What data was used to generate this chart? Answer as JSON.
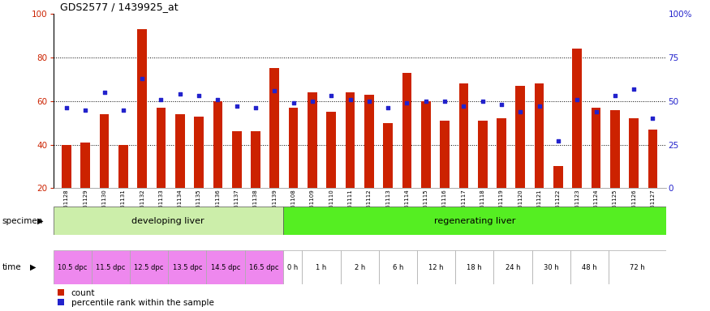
{
  "title": "GDS2577 / 1439925_at",
  "samples": [
    "GSM161128",
    "GSM161129",
    "GSM161130",
    "GSM161131",
    "GSM161132",
    "GSM161133",
    "GSM161134",
    "GSM161135",
    "GSM161136",
    "GSM161137",
    "GSM161138",
    "GSM161139",
    "GSM161108",
    "GSM161109",
    "GSM161110",
    "GSM161111",
    "GSM161112",
    "GSM161113",
    "GSM161114",
    "GSM161115",
    "GSM161116",
    "GSM161117",
    "GSM161118",
    "GSM161119",
    "GSM161120",
    "GSM161121",
    "GSM161122",
    "GSM161123",
    "GSM161124",
    "GSM161125",
    "GSM161126",
    "GSM161127"
  ],
  "counts": [
    40,
    41,
    54,
    40,
    93,
    57,
    54,
    53,
    60,
    46,
    46,
    75,
    57,
    64,
    55,
    64,
    63,
    50,
    73,
    60,
    51,
    68,
    51,
    52,
    67,
    68,
    30,
    84,
    57,
    56,
    52,
    47
  ],
  "percentile": [
    46,
    45,
    55,
    45,
    63,
    51,
    54,
    53,
    51,
    47,
    46,
    56,
    49,
    50,
    53,
    51,
    50,
    46,
    49,
    50,
    50,
    47,
    50,
    48,
    44,
    47,
    27,
    51,
    44,
    53,
    57,
    40
  ],
  "bar_color": "#cc2200",
  "marker_color": "#2222cc",
  "ylim_left": [
    20,
    100
  ],
  "ylim_right": [
    0,
    100
  ],
  "yticks_left": [
    20,
    40,
    60,
    80,
    100
  ],
  "yticks_right": [
    0,
    25,
    50,
    75,
    100
  ],
  "ytick_labels_right": [
    "0",
    "25",
    "50",
    "75",
    "100%"
  ],
  "developing_color": "#cceeaa",
  "regenerating_color": "#55ee22",
  "time_color_dpc": "#ee88ee",
  "time_color_h": "#ffffff",
  "time_border_color": "#aaaaaa",
  "time_groups": [
    [
      0,
      2,
      "10.5 dpc"
    ],
    [
      2,
      4,
      "11.5 dpc"
    ],
    [
      4,
      6,
      "12.5 dpc"
    ],
    [
      6,
      8,
      "13.5 dpc"
    ],
    [
      8,
      10,
      "14.5 dpc"
    ],
    [
      10,
      12,
      "16.5 dpc"
    ],
    [
      12,
      13,
      "0 h"
    ],
    [
      13,
      15,
      "1 h"
    ],
    [
      15,
      17,
      "2 h"
    ],
    [
      17,
      19,
      "6 h"
    ],
    [
      19,
      21,
      "12 h"
    ],
    [
      21,
      23,
      "18 h"
    ],
    [
      23,
      25,
      "24 h"
    ],
    [
      25,
      27,
      "30 h"
    ],
    [
      27,
      29,
      "48 h"
    ],
    [
      29,
      32,
      "72 h"
    ]
  ],
  "n_developing": 12,
  "n_total": 32
}
